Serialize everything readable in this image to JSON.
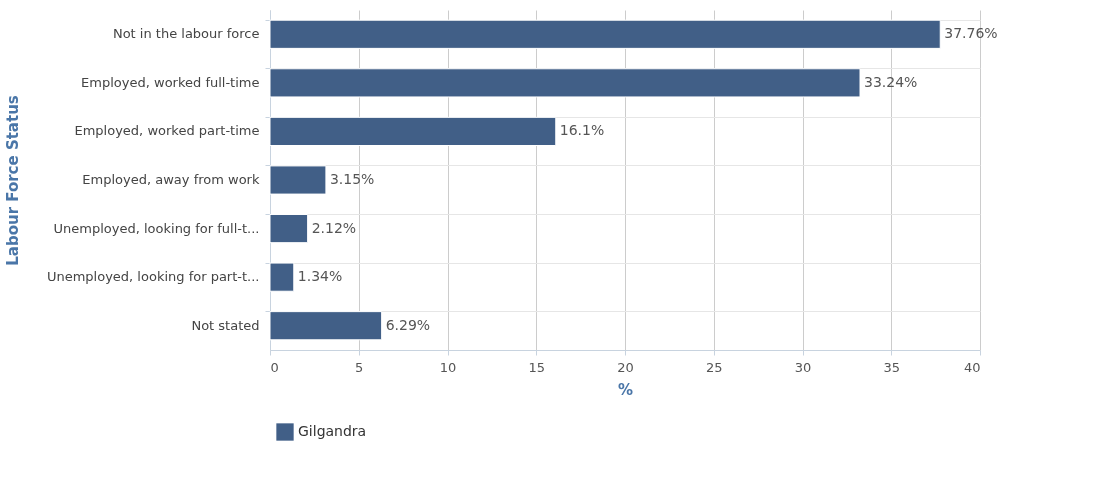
{
  "chart_data": {
    "type": "bar",
    "orientation": "horizontal",
    "ylabel": "Labour Force Status",
    "xlabel": "%",
    "categories": [
      "Not in the labour force",
      "Employed, worked full-time",
      "Employed, worked part-time",
      "Employed, away from work",
      "Unemployed, looking for full-t...",
      "Unemployed, looking for part-t...",
      "Not stated"
    ],
    "series": [
      {
        "name": "Gilgandra",
        "color": "#415f87",
        "values": [
          37.76,
          33.24,
          16.1,
          3.15,
          2.12,
          1.34,
          6.29
        ],
        "value_labels": [
          "37.76%",
          "33.24%",
          "16.1%",
          "3.15%",
          "2.12%",
          "1.34%",
          "6.29%"
        ]
      }
    ],
    "xlim": [
      0,
      40
    ],
    "xticks": [
      0,
      5,
      10,
      15,
      20,
      25,
      30,
      35,
      40
    ],
    "grid": true,
    "legend": "bottom"
  }
}
